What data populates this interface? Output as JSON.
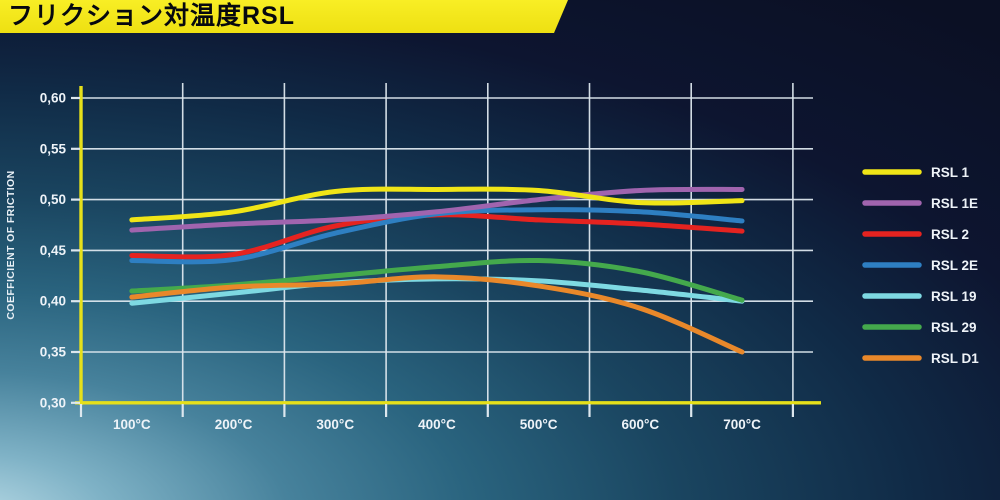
{
  "header": {
    "background_color": "#f3e71a",
    "text_color": "#06080f"
  },
  "chart_data": {
    "type": "line",
    "title": "フリクション対温度RSL",
    "ylabel": "COEFFICIENT OF FRICTION",
    "xlabel": "",
    "categories": [
      "100°C",
      "200°C",
      "300°C",
      "400°C",
      "500°C",
      "600°C",
      "700°C"
    ],
    "y_tick_labels": [
      "0,60",
      "0,55",
      "0,50",
      "0,45",
      "0,40",
      "0,35",
      "0,30"
    ],
    "y_tick_values": [
      0.6,
      0.55,
      0.5,
      0.45,
      0.4,
      0.35,
      0.3
    ],
    "ylim": [
      0.3,
      0.6
    ],
    "grid": true,
    "legend_position": "right",
    "axis_color": "#e6e01a",
    "grid_color": "#dde7ee",
    "label_color": "#eef3f8",
    "series": [
      {
        "name": "RSL 1",
        "color": "#f0e517",
        "values": [
          0.48,
          0.488,
          0.508,
          0.51,
          0.509,
          0.497,
          0.499
        ]
      },
      {
        "name": "RSL 1E",
        "color": "#a064ae",
        "values": [
          0.47,
          0.476,
          0.48,
          0.488,
          0.5,
          0.509,
          0.51
        ]
      },
      {
        "name": "RSL 2",
        "color": "#e52320",
        "values": [
          0.445,
          0.446,
          0.474,
          0.485,
          0.48,
          0.476,
          0.469
        ]
      },
      {
        "name": "RSL 2E",
        "color": "#2e7fc2",
        "values": [
          0.44,
          0.441,
          0.467,
          0.486,
          0.49,
          0.488,
          0.479
        ]
      },
      {
        "name": "RSL 19",
        "color": "#7ed9e2",
        "values": [
          0.398,
          0.408,
          0.418,
          0.422,
          0.42,
          0.411,
          0.4
        ]
      },
      {
        "name": "RSL 29",
        "color": "#44a94c",
        "values": [
          0.41,
          0.416,
          0.425,
          0.434,
          0.44,
          0.429,
          0.401
        ]
      },
      {
        "name": "RSL D1",
        "color": "#e9882a",
        "values": [
          0.404,
          0.414,
          0.417,
          0.424,
          0.415,
          0.393,
          0.35
        ]
      }
    ]
  }
}
